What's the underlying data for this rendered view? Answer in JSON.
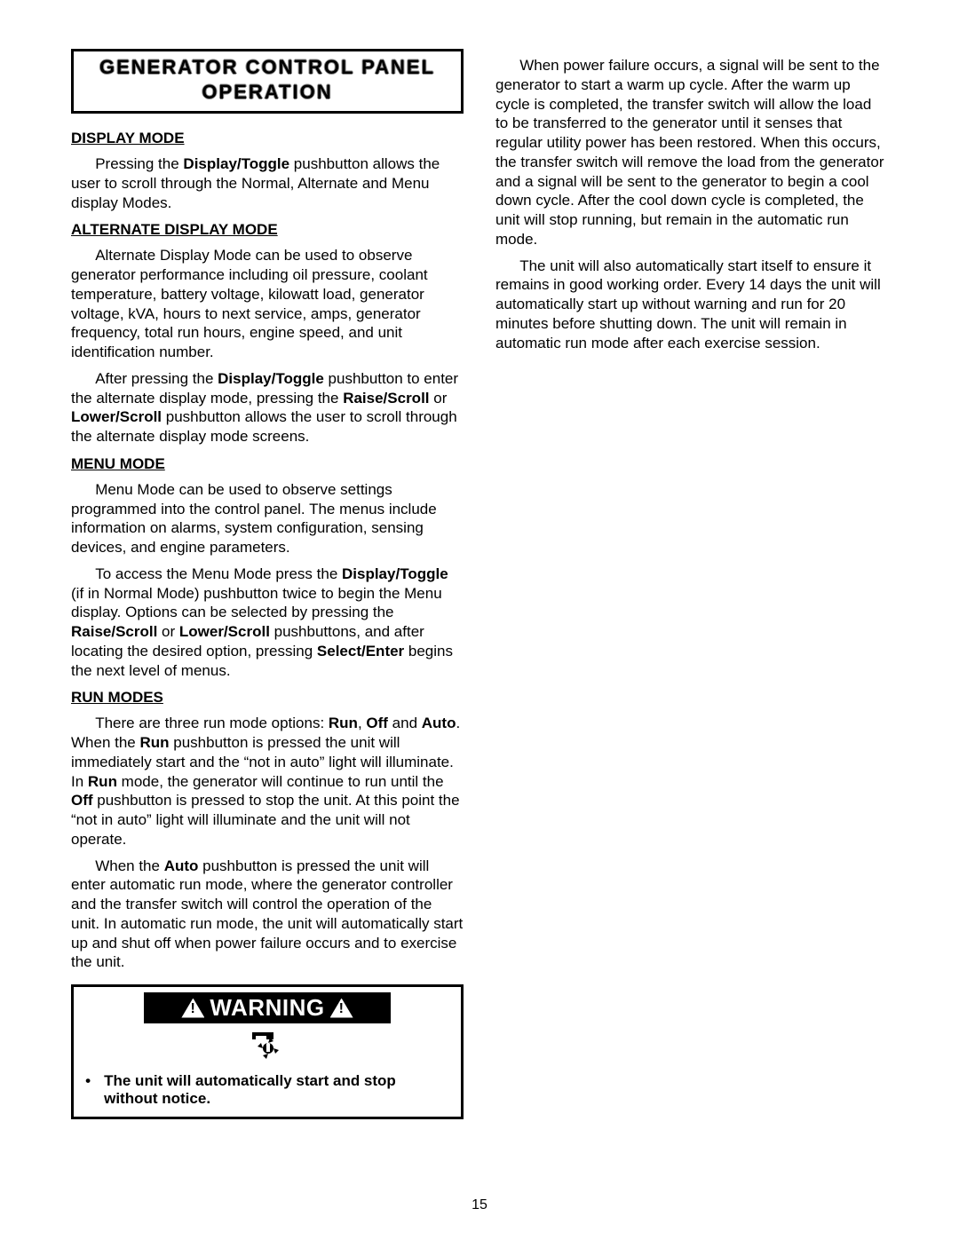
{
  "page_number": "15",
  "section_title_line1": "GENERATOR CONTROL PANEL",
  "section_title_line2": "OPERATION",
  "left": {
    "display_mode_heading": "DISPLAY MODE",
    "display_mode_p1_html": "Pressing the <span class='b'>Display/Toggle</span> pushbutton allows the user to scroll through the Normal, Alternate and Menu display Modes.",
    "alt_heading": "ALTERNATE DISPLAY MODE",
    "alt_p1_html": "Alternate Display Mode can be used to observe generator performance  including oil pressure, coolant temperature, battery voltage, kilowatt load, generator voltage, kVA, hours to next service, amps, generator frequency, total run hours, engine speed, and unit identification number.",
    "alt_p2_html": "After pressing the <span class='b'>Display/Toggle</span> pushbutton to enter the alternate display mode, pressing the <span class='b'>Raise/Scroll</span> or <span class='b'>Lower/Scroll</span> pushbutton allows the user to scroll through the alternate display mode screens.",
    "menu_heading": "MENU MODE",
    "menu_p1_html": "Menu Mode can be used to observe settings programmed into the control panel. The menus include information on alarms, system configuration, sensing devices, and engine parameters.",
    "menu_p2_html": "To access the Menu Mode press the <span class='b'>Display/Toggle</span> (if in Normal Mode) pushbutton twice to begin the Menu display. Options can be selected by pressing the <span class='b'>Raise/Scroll</span> or <span class='b'>Lower/Scroll</span> pushbuttons, and after locating the desired option, pressing <span class='b'>Select/Enter</span> begins the next level of menus.",
    "run_heading": "RUN MODES",
    "run_p1_html": "There are three run mode options: <span class='b'>Run</span>, <span class='b'>Off</span> and <span class='b'>Auto</span>. When the <span class='b'>Run</span> pushbutton is pressed the unit will immediately start and the “not in auto” light will illuminate. In <span class='b'>Run</span> mode, the generator will continue to run until the <span class='b'>Off</span> pushbutton is pressed to stop the unit. At this point the “not in auto” light will illuminate and the unit will not operate.",
    "run_p2_html": "When the <span class='b'>Auto</span> pushbutton is pressed the unit will enter automatic run mode, where the generator controller and the transfer switch will control the operation of the unit. In automatic run mode, the unit will automatically start up and shut off when power failure occurs and to exercise the unit."
  },
  "right": {
    "p1_html": "When power failure occurs, a signal will be sent to the generator to start a warm up cycle. After the warm up cycle is completed, the transfer switch will allow the load to be transferred to the generator until it senses that regular utility power has been restored. When this occurs, the transfer switch will remove the load from the generator and a signal will be sent to the generator to begin a cool down cycle. After the cool down cycle is completed, the unit will stop running, but remain in the automatic run mode.",
    "p2_html": "The unit will also automatically start itself to ensure it remains in good working order. Every 14 days the unit will automatically start up without warning and run for 20 minutes before shutting down. The unit will remain in automatic run mode after each exercise session."
  },
  "warning": {
    "label": "WARNING",
    "bullet": "The unit will automatically start and stop without notice."
  }
}
